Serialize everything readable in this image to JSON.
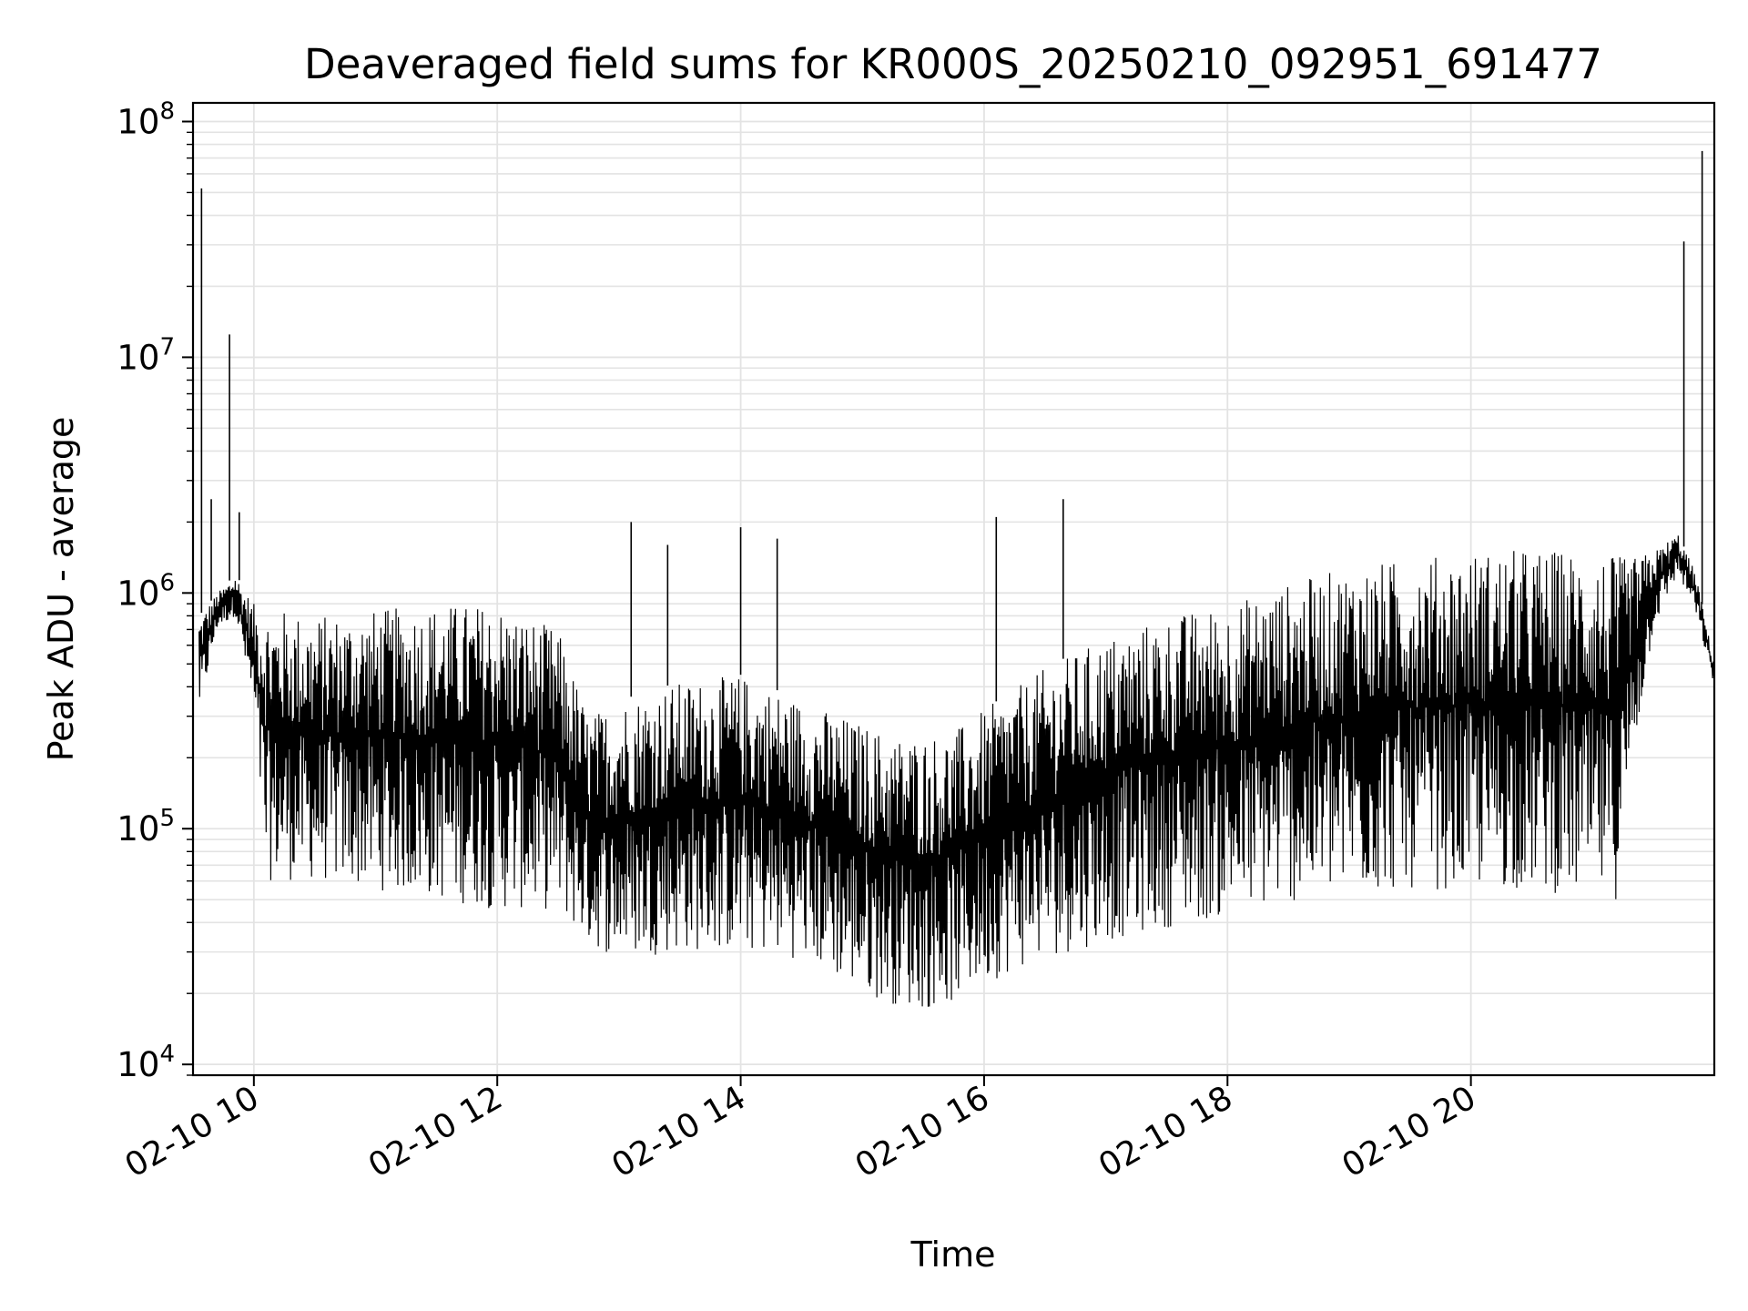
{
  "chart_data": {
    "type": "line",
    "title": "Deaveraged field sums for KR000S_20250210_092951_691477",
    "xlabel": "Time",
    "ylabel": "Peak ADU - average",
    "yscale": "log",
    "ylim": [
      9000,
      120000000
    ],
    "xlim_hours": [
      9.5,
      22.0
    ],
    "grid": "major and minor, light gray",
    "legend": "none",
    "x_tick_labels": [
      "02-10 10",
      "02-10 12",
      "02-10 14",
      "02-10 16",
      "02-10 18",
      "02-10 20"
    ],
    "x_tick_hours": [
      10,
      12,
      14,
      16,
      18,
      20
    ],
    "y_tick_exponents": [
      4,
      5,
      6,
      7,
      8
    ],
    "y_tick_base": "10",
    "colors": {
      "line": "#000000",
      "grid": "#e3e3e3",
      "background": "#ffffff"
    },
    "series": [
      {
        "description_only": "upper envelope and lower envelope of rapidly oscillating deaveraged sums",
        "upper_envelope": {
          "hours": [
            9.55,
            9.7,
            9.85,
            10.0,
            10.5,
            11.0,
            11.5,
            12.0,
            12.5,
            12.75,
            13.0,
            13.5,
            14.0,
            14.5,
            15.0,
            15.25,
            15.5,
            15.75,
            16.0,
            16.5,
            17.0,
            17.5,
            18.0,
            18.5,
            19.0,
            19.5,
            20.0,
            20.5,
            21.0,
            21.3,
            21.5,
            21.7,
            21.85,
            22.0
          ],
          "values": [
            800000,
            1000000,
            1200000,
            900000,
            800000,
            850000,
            900000,
            900000,
            700000,
            300000,
            350000,
            420000,
            450000,
            350000,
            280000,
            250000,
            250000,
            260000,
            320000,
            480000,
            650000,
            800000,
            900000,
            1100000,
            1300000,
            1400000,
            1500000,
            1550000,
            1500000,
            1400000,
            1500000,
            1800000,
            1200000,
            500000
          ]
        },
        "lower_envelope": {
          "hours": [
            9.55,
            9.7,
            9.85,
            10.0,
            10.1,
            10.5,
            11.0,
            11.5,
            12.0,
            12.5,
            12.75,
            13.0,
            13.5,
            14.0,
            14.5,
            15.0,
            15.25,
            15.5,
            15.75,
            16.0,
            16.5,
            17.0,
            17.5,
            18.0,
            18.5,
            19.0,
            19.5,
            20.0,
            20.5,
            21.0,
            21.2,
            21.3,
            21.5,
            21.7,
            21.85,
            22.0
          ],
          "values": [
            300000,
            700000,
            800000,
            300000,
            60000,
            60000,
            55000,
            50000,
            45000,
            45000,
            32000,
            28000,
            30000,
            30000,
            28000,
            20000,
            18000,
            17000,
            18000,
            22000,
            28000,
            33000,
            38000,
            42000,
            48000,
            52000,
            55000,
            55000,
            55000,
            50000,
            50000,
            150000,
            700000,
            1200000,
            800000,
            400000
          ]
        },
        "spikes": {
          "hours": [
            9.57,
            9.8,
            9.65,
            9.88,
            13.1,
            13.4,
            14.0,
            14.3,
            16.1,
            16.65,
            21.75,
            21.9
          ],
          "values": [
            52000000,
            12500000,
            2500000,
            2200000,
            2000000,
            1600000,
            1900000,
            1700000,
            2100000,
            2500000,
            31000000,
            75000000
          ]
        }
      }
    ]
  }
}
